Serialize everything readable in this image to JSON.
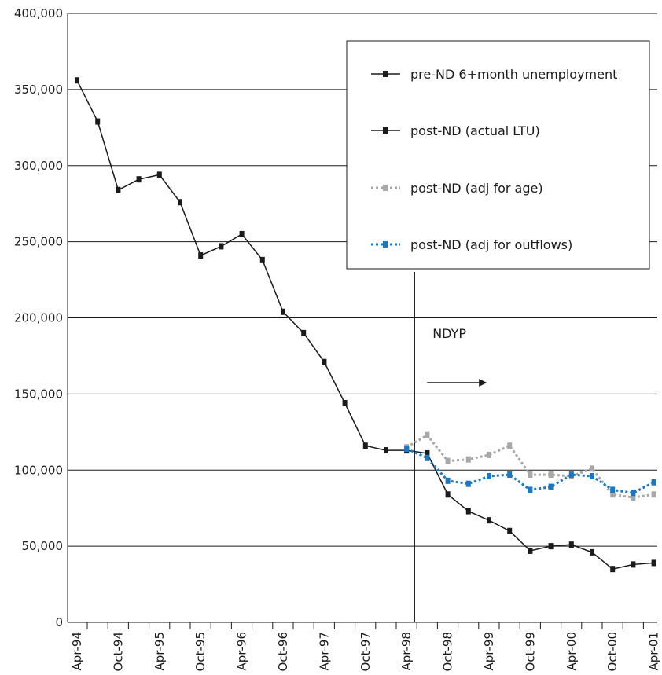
{
  "chart_data": {
    "type": "line",
    "title": "",
    "xlabel": "",
    "ylabel": "",
    "ylim": [
      0,
      400000
    ],
    "y_ticks": [
      0,
      50000,
      100000,
      150000,
      200000,
      250000,
      300000,
      350000,
      400000
    ],
    "y_tick_labels": [
      "0",
      "50,000",
      "100,000",
      "150,000",
      "200,000",
      "250,000",
      "300,000",
      "350,000",
      "400,000"
    ],
    "x_tick_labels": [
      "Apr-94",
      "Oct-94",
      "Apr-95",
      "Oct-95",
      "Apr-96",
      "Oct-96",
      "Apr-97",
      "Oct-97",
      "Apr-98",
      "Oct-98",
      "Apr-99",
      "Oct-99",
      "Apr-00",
      "Oct-00",
      "Apr-01"
    ],
    "x_tick_label_quarters": [
      0,
      2,
      4,
      6,
      8,
      10,
      12,
      14,
      16,
      18,
      20,
      22,
      24,
      26,
      28
    ],
    "x_range_quarters": [
      0,
      28.5
    ],
    "grid": "horizontal",
    "legend_position": "top-right",
    "series": [
      {
        "name": "pre-ND 6+month unemployment",
        "color": "#1a1a1a",
        "dash": "solid",
        "x_quarters": [
          0,
          1,
          2,
          3,
          4,
          5,
          6,
          7,
          8,
          9,
          10,
          11,
          12,
          13,
          14,
          15,
          16
        ],
        "values": [
          356000,
          329000,
          284000,
          291000,
          294000,
          276000,
          241000,
          247000,
          255000,
          238000,
          204000,
          190000,
          171000,
          144000,
          116000,
          113000,
          113000
        ]
      },
      {
        "name": "post-ND (actual LTU)",
        "color": "#1a1a1a",
        "dash": "solid",
        "x_quarters": [
          16,
          17,
          18,
          19,
          20,
          21,
          22,
          23,
          24,
          25,
          26,
          27,
          28
        ],
        "values": [
          113000,
          111000,
          84000,
          73000,
          67000,
          60000,
          47000,
          50000,
          51000,
          46000,
          35000,
          38000,
          39000
        ]
      },
      {
        "name": "post-ND (adj for age)",
        "color": "#a8a8a8",
        "dash": "dotted",
        "x_quarters": [
          16,
          17,
          18,
          19,
          20,
          21,
          22,
          23,
          24,
          25,
          26,
          27,
          28
        ],
        "values": [
          115000,
          123000,
          106000,
          107000,
          110000,
          116000,
          97000,
          97000,
          96000,
          101000,
          84000,
          82000,
          84000
        ]
      },
      {
        "name": "post-ND (adj for outflows)",
        "color": "#1a78c2",
        "dash": "dotted",
        "x_quarters": [
          16,
          17,
          18,
          19,
          20,
          21,
          22,
          23,
          24,
          25,
          26,
          27,
          28
        ],
        "values": [
          114000,
          108000,
          93000,
          91000,
          96000,
          97000,
          87000,
          89000,
          97000,
          96000,
          87000,
          85000,
          92000
        ]
      }
    ],
    "annotations": [
      {
        "text": "NDYP",
        "x_quarter": 16
      }
    ]
  }
}
